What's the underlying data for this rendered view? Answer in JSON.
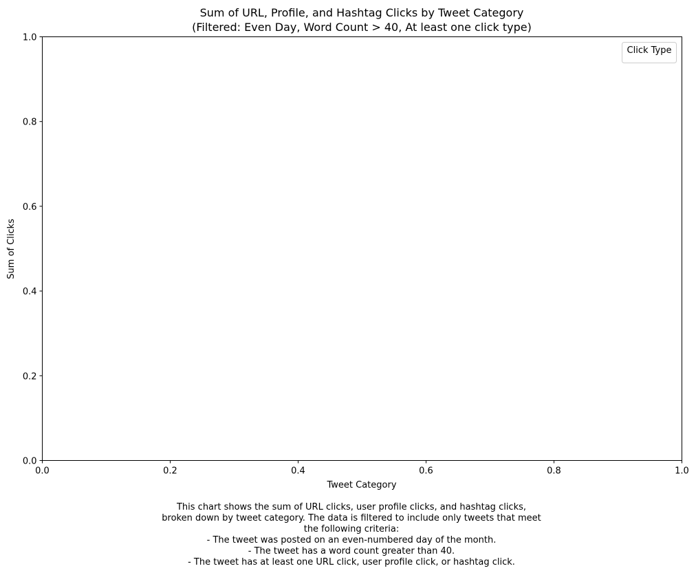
{
  "chart_data": {
    "type": "bar",
    "title_lines": [
      "Sum of URL, Profile, and Hashtag Clicks by Tweet Category",
      "(Filtered: Even Day, Word Count > 40, At least one click type)"
    ],
    "xlabel": "Tweet Category",
    "ylabel": "Sum of Clicks",
    "xlim": [
      0,
      1
    ],
    "ylim": [
      0,
      1
    ],
    "x_ticks": [
      "0.0",
      "0.2",
      "0.4",
      "0.6",
      "0.8",
      "1.0"
    ],
    "y_ticks": [
      "0.0",
      "0.2",
      "0.4",
      "0.6",
      "0.8",
      "1.0"
    ],
    "categories": [],
    "series": [],
    "grid": false,
    "legend": {
      "title": "Click Type",
      "placement": "top-right",
      "entries": []
    },
    "caption_lines": [
      "This chart shows the sum of URL clicks, user profile clicks, and hashtag clicks,",
      "broken down by tweet category. The data is filtered to include only tweets that meet",
      "the following criteria:",
      "- The tweet was posted on an even-numbered day of the month.",
      "- The tweet has a word count greater than 40.",
      "- The tweet has at least one URL click, user profile click, or hashtag click."
    ]
  }
}
